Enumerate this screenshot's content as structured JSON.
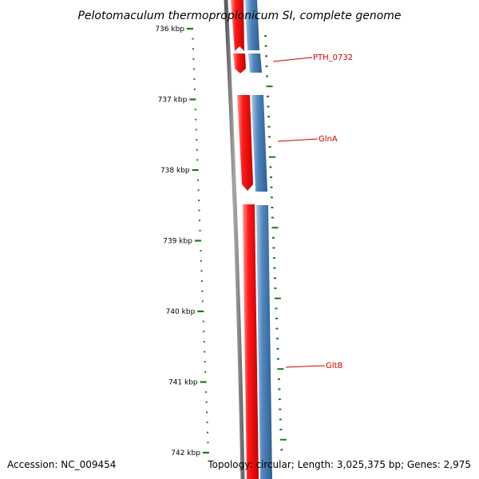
{
  "title": "Pelotomaculum thermopropionicum SI, complete genome",
  "footer": {
    "accession": "Accession: NC_009454",
    "summary": "Topology: circular; Length: 3,025,375 bp; Genes: 2,975"
  },
  "ticks": [
    "736 kbp",
    "737 kbp",
    "738 kbp",
    "739 kbp",
    "740 kbp",
    "741 kbp",
    "742 kbp"
  ],
  "genes": [
    {
      "label": "PTH_0732"
    },
    {
      "label": "GlnA"
    },
    {
      "label": "GltB"
    }
  ],
  "colors": {
    "forward_strand": "#ff0000",
    "reverse_strand": "#4a7fb0",
    "backbone": "#888888",
    "tick": "#1a7a1a",
    "gene_label": "#cc0000"
  }
}
